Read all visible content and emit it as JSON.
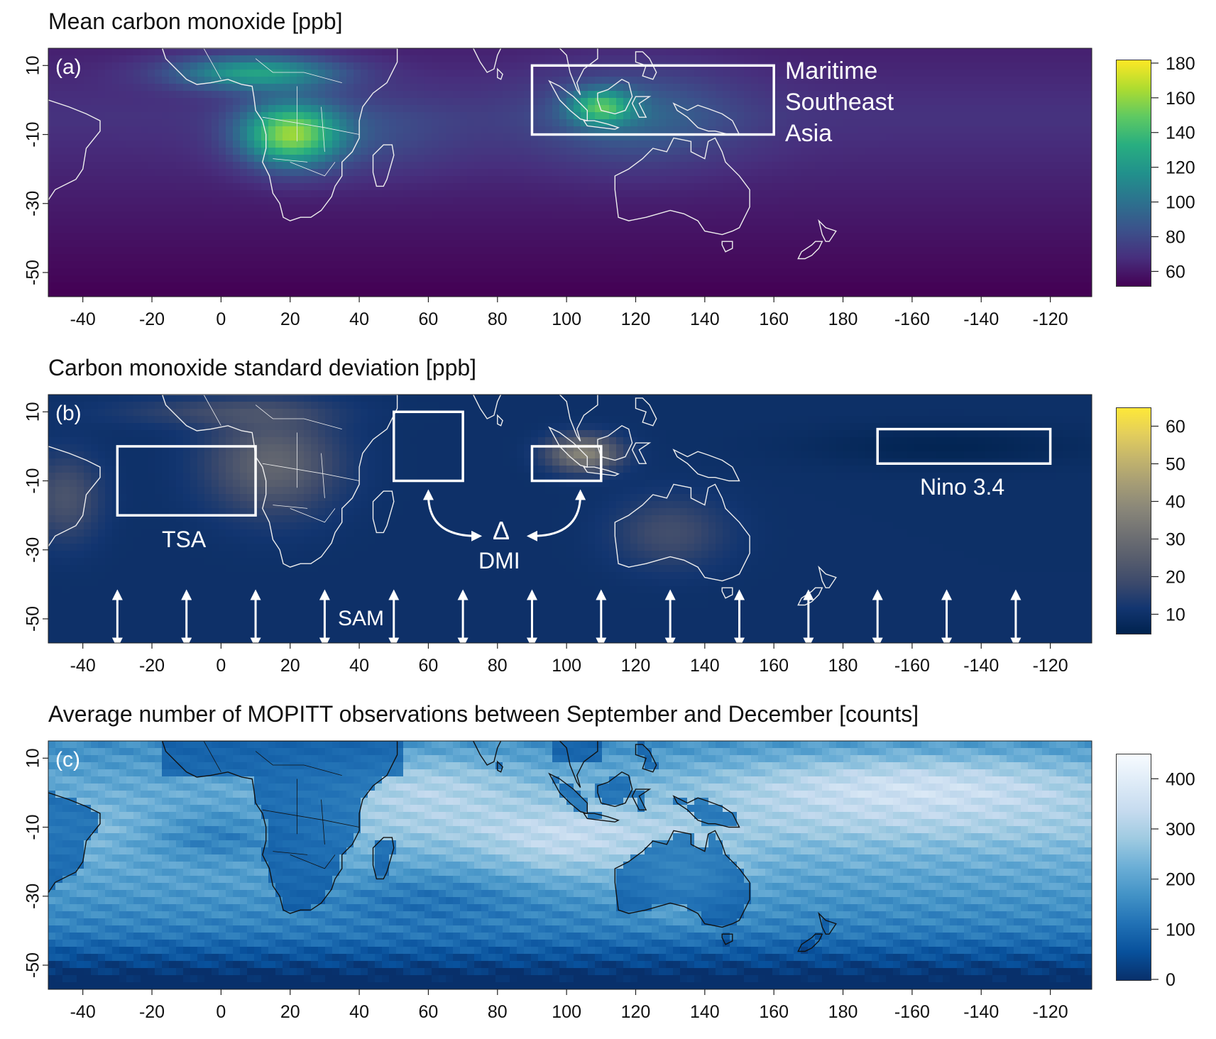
{
  "panels": [
    {
      "id": "a",
      "title": "Mean carbon monoxide [ppb]",
      "letter": "(a)",
      "colormap": [
        "#440154",
        "#472f7d",
        "#3b528b",
        "#2c728e",
        "#21918c",
        "#28ae80",
        "#5ec962",
        "#addc30",
        "#fde725"
      ],
      "colorbar_ticks": [
        "180",
        "160",
        "140",
        "120",
        "100",
        "80",
        "60"
      ],
      "colorbar_range": [
        52,
        182
      ],
      "boxes": [
        {
          "name": "Maritime Southeast Asia",
          "lon": [
            90,
            160
          ],
          "lat": [
            -10,
            10
          ]
        }
      ],
      "labels": {
        "msa_line1": "Maritime",
        "msa_line2": "Southeast",
        "msa_line3": "Asia"
      }
    },
    {
      "id": "b",
      "title": "Carbon monoxide standard deviation [ppb]",
      "letter": "(b)",
      "colormap": [
        "#00224e",
        "#123570",
        "#3b496c",
        "#575d6d",
        "#707173",
        "#8a8779",
        "#a69d75",
        "#c4b56c",
        "#e4cf5b",
        "#fee838"
      ],
      "colorbar_ticks": [
        "60",
        "50",
        "40",
        "30",
        "20",
        "10"
      ],
      "colorbar_range": [
        5,
        65
      ],
      "boxes": [
        {
          "name": "TSA",
          "lon": [
            -30,
            10
          ],
          "lat": [
            -20,
            0
          ]
        },
        {
          "name": "DMI west",
          "lon": [
            50,
            70
          ],
          "lat": [
            -10,
            10
          ]
        },
        {
          "name": "DMI east",
          "lon": [
            90,
            110
          ],
          "lat": [
            -10,
            0
          ]
        },
        {
          "name": "Nino 3.4",
          "lon": [
            190,
            240
          ],
          "lat": [
            -5,
            5
          ]
        }
      ],
      "labels": {
        "tsa": "TSA",
        "delta": "Δ",
        "dmi": "DMI",
        "nino": "Nino 3.4",
        "sam": "SAM"
      },
      "sam_arrow_lons": [
        -30,
        -10,
        10,
        30,
        50,
        70,
        90,
        110,
        130,
        150,
        170,
        190,
        210,
        230
      ]
    },
    {
      "id": "c",
      "title": "Average number of MOPITT observations between September and December [counts]",
      "letter": "(c)",
      "colormap": [
        "#08306b",
        "#08519c",
        "#2171b5",
        "#4292c6",
        "#6baed6",
        "#9ecae1",
        "#c6dbef",
        "#deebf7",
        "#f7fbff"
      ],
      "colorbar_ticks": [
        "400",
        "300",
        "200",
        "100",
        "0"
      ],
      "colorbar_range": [
        0,
        450
      ],
      "boxes": []
    }
  ],
  "x_axis": {
    "lon_range": [
      -50,
      252
    ],
    "tick_lons": [
      -40,
      -20,
      0,
      20,
      40,
      60,
      80,
      100,
      120,
      140,
      160,
      180,
      200,
      220,
      240
    ],
    "tick_labels": [
      "-40",
      "-20",
      "0",
      "20",
      "40",
      "60",
      "80",
      "100",
      "120",
      "140",
      "160",
      "180",
      "-160",
      "-140",
      "-120"
    ]
  },
  "y_axis": {
    "lat_range": [
      -57,
      15
    ],
    "tick_lats": [
      10,
      -10,
      -30,
      -50
    ],
    "tick_labels": [
      "10",
      "-10",
      "-30",
      "-50"
    ]
  }
}
